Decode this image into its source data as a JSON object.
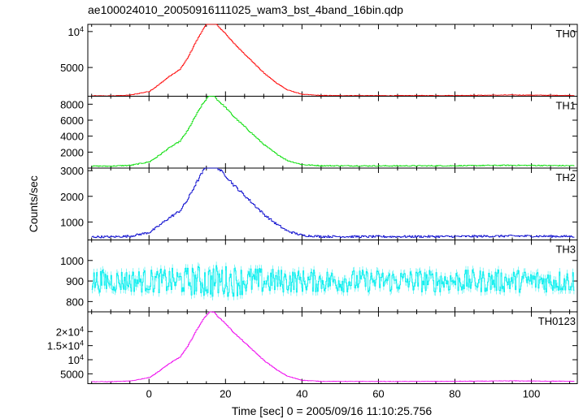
{
  "chart_data": {
    "type": "line",
    "title": "ae100024010_20050916111025_wam3_bst_4band_16bin.qdp",
    "xlabel": "Time [sec] 0 = 2005/09/16 11:10:25.756",
    "ylabel": "Counts/sec",
    "xlim": [
      -16,
      112
    ],
    "x_ticks": [
      0,
      20,
      40,
      60,
      80,
      100
    ],
    "x_tick_labels": [
      "0",
      "20",
      "40",
      "60",
      "80",
      "100"
    ],
    "grid": false,
    "legend": "none",
    "burst_profile": {
      "t": [
        -16,
        -10,
        -5,
        0,
        2,
        5,
        8,
        10,
        12,
        14,
        15,
        16,
        17,
        18,
        20,
        22,
        24,
        26,
        28,
        30,
        33,
        36,
        40,
        45,
        60,
        80,
        95,
        100,
        112
      ],
      "f": [
        0,
        0,
        0.01,
        0.06,
        0.13,
        0.25,
        0.35,
        0.5,
        0.7,
        0.88,
        0.95,
        1.0,
        0.98,
        0.92,
        0.82,
        0.7,
        0.6,
        0.5,
        0.4,
        0.3,
        0.18,
        0.08,
        0.02,
        0.005,
        0.003,
        0.005,
        0.012,
        0.01,
        0.005
      ]
    },
    "panels": [
      {
        "name": "TH0",
        "color": "#ff0000",
        "ylim": [
          1000,
          11000
        ],
        "y_ticks": [
          5000,
          10000
        ],
        "y_tick_labels": [
          "5000",
          "10^4"
        ],
        "baseline": 1050,
        "peak": 10500,
        "noise": 40
      },
      {
        "name": "TH1",
        "color": "#00dd00",
        "ylim": [
          0,
          9000
        ],
        "y_ticks": [
          2000,
          4000,
          6000,
          8000
        ],
        "y_tick_labels": [
          "2000",
          "4000",
          "6000",
          "8000"
        ],
        "baseline": 250,
        "peak": 8900,
        "noise": 60
      },
      {
        "name": "TH2",
        "color": "#0000cc",
        "ylim": [
          300,
          3100
        ],
        "y_ticks": [
          1000,
          2000,
          3000
        ],
        "y_tick_labels": [
          "1000",
          "2000",
          "3000"
        ],
        "baseline": 420,
        "peak": 2900,
        "noise": 40
      },
      {
        "name": "TH3",
        "color": "#00eeee",
        "ylim": [
          750,
          1100
        ],
        "y_ticks": [
          800,
          900,
          1000
        ],
        "y_tick_labels": [
          "800",
          "900",
          "1000"
        ],
        "baseline": 900,
        "peak": 0,
        "noise": 55
      },
      {
        "name": "TH0123",
        "color": "#ee00ee",
        "ylim": [
          1500,
          27000
        ],
        "y_ticks": [
          5000,
          10000,
          15000,
          20000
        ],
        "y_tick_labels": [
          "5000",
          "10^4",
          "1.5×10^4",
          "2×10^4"
        ],
        "baseline": 2200,
        "peak": 25000,
        "noise": 80
      }
    ]
  }
}
